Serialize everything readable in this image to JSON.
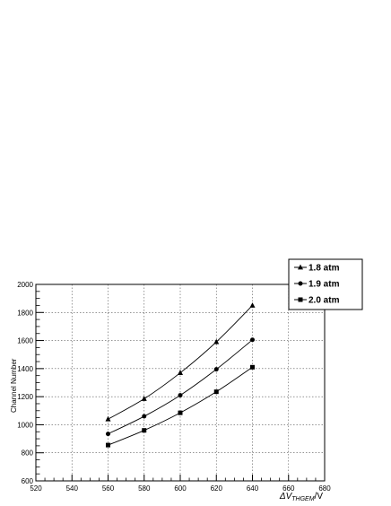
{
  "chart_data": {
    "type": "line",
    "title": "",
    "xlabel": "ΔV_THGEM/V",
    "xlabel_parts": {
      "delta_v": "ΔV",
      "subscript": "THGEM",
      "unit": "/V"
    },
    "ylabel": "Channel Number",
    "xlim": [
      520,
      680
    ],
    "ylim": [
      600,
      2000
    ],
    "x_ticks": [
      "520",
      "540",
      "560",
      "580",
      "600",
      "620",
      "640",
      "660",
      "680"
    ],
    "y_ticks": [
      "600",
      "800",
      "1000",
      "1200",
      "1400",
      "1600",
      "1800",
      "2000"
    ],
    "grid": true,
    "legend_position": "top-right, outside plot",
    "x": [
      560,
      580,
      600,
      620,
      640
    ],
    "series": [
      {
        "name": "1.8 atm",
        "marker": "triangle",
        "values": [
          1040,
          1185,
          1370,
          1590,
          1850
        ]
      },
      {
        "name": "1.9 atm",
        "marker": "circle",
        "values": [
          935,
          1060,
          1210,
          1395,
          1605
        ]
      },
      {
        "name": "2.0 atm",
        "marker": "square",
        "values": [
          855,
          960,
          1085,
          1235,
          1410
        ]
      }
    ]
  }
}
